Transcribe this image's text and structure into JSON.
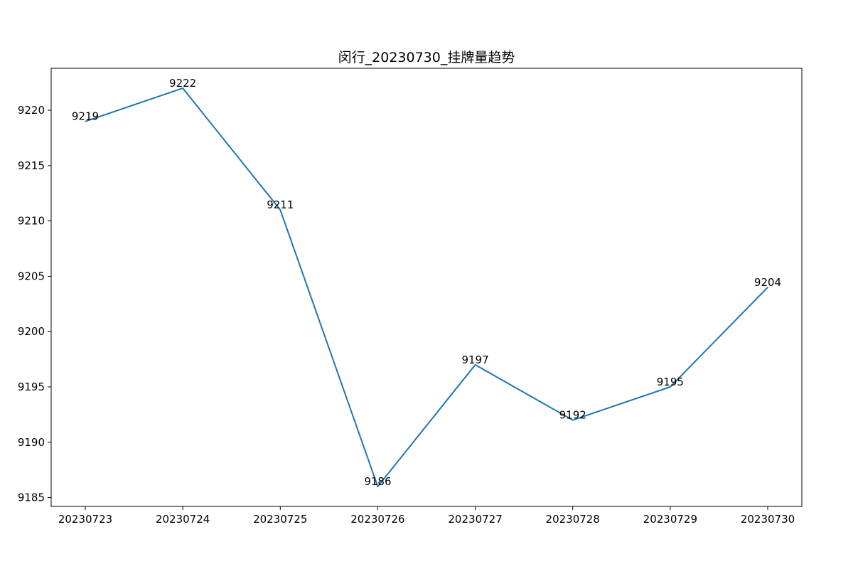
{
  "chart_data": {
    "type": "line",
    "title": "闵行_20230730_挂牌量趋势",
    "xlabel": "",
    "ylabel": "",
    "categories": [
      "20230723",
      "20230724",
      "20230725",
      "20230726",
      "20230727",
      "20230728",
      "20230729",
      "20230730"
    ],
    "series": [
      {
        "values": [
          9219,
          9222,
          9211,
          9186,
          9197,
          9192,
          9195,
          9204
        ],
        "color": "#1f77b4"
      }
    ],
    "y_ticks": [
      9185,
      9190,
      9195,
      9200,
      9205,
      9210,
      9215,
      9220
    ],
    "ylim": [
      9184.2,
      9223.8
    ],
    "grid": false,
    "legend": "none"
  }
}
